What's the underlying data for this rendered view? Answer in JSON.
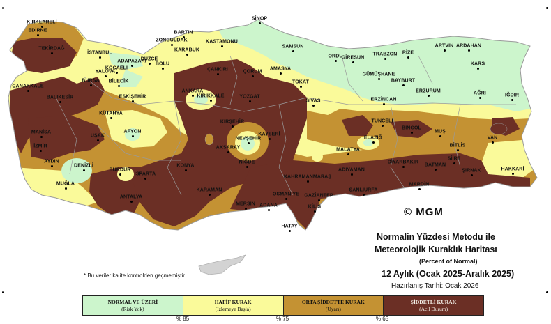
{
  "map": {
    "title_line1": "Normalin Yüzdesi Metodu ile",
    "title_line2": "Meteorolojik Kuraklık Haritası",
    "subtitle": "(Percent of Normal)",
    "period": "12 Aylık (Ocak 2025-Aralık 2025)",
    "prepared": "Hazırlanış Tarihi: Ocak 2026",
    "footnote": "* Bu veriler kalite kontrolden geçmemiştir.",
    "logo_text": "© MGM",
    "colors": {
      "normal": "#ccf5cc",
      "hafif": "#fafa9a",
      "orta": "#c49233",
      "siddetli": "#6b2f25",
      "border": "#9a9a9a"
    }
  },
  "legend": {
    "items": [
      {
        "label": "NORMAL VE ÜZERİ",
        "sub": "(Risk Yok)",
        "color": "#ccf5cc"
      },
      {
        "label": "HAFİF KURAK",
        "sub": "(İzlemeye Başla)",
        "color": "#fafa9a"
      },
      {
        "label": "ORTA ŞİDDETTE KURAK",
        "sub": "(Uyarı)",
        "color": "#c49233"
      },
      {
        "label": "ŞİDDETLİ KURAK",
        "sub": "(Acil Durum)",
        "color": "#6b2f25"
      }
    ],
    "thresholds": [
      "% 85",
      "% 75",
      "% 65"
    ]
  },
  "cities": [
    {
      "name": "SİNOP"
    },
    {
      "name": "KIRKLARELİ"
    },
    {
      "name": "EDİRNE"
    },
    {
      "name": "BARTIN"
    },
    {
      "name": "ZONGULDAK"
    },
    {
      "name": "KARABÜK"
    },
    {
      "name": "KASTAMONU"
    },
    {
      "name": "SAMSUN"
    },
    {
      "name": "ORDU"
    },
    {
      "name": "GİRESUN"
    },
    {
      "name": "TRABZON"
    },
    {
      "name": "RİZE"
    },
    {
      "name": "ARTVİN"
    },
    {
      "name": "ARDAHAN"
    },
    {
      "name": "TEKİRDAĞ"
    },
    {
      "name": "İSTANBUL"
    },
    {
      "name": "KOCAELİ"
    },
    {
      "name": "ADAPAZARI"
    },
    {
      "name": "DÜZCE"
    },
    {
      "name": "BOLU"
    },
    {
      "name": "ÇANKIRI"
    },
    {
      "name": "ÇORUM"
    },
    {
      "name": "AMASYA"
    },
    {
      "name": "GÜMÜŞHANE"
    },
    {
      "name": "BAYBURT"
    },
    {
      "name": "KARS"
    },
    {
      "name": "YALOVA"
    },
    {
      "name": "BURSA"
    },
    {
      "name": "BİLECİK"
    },
    {
      "name": "ÇANAKKALE"
    },
    {
      "name": "BALIKESİR"
    },
    {
      "name": "ESKİŞEHİR"
    },
    {
      "name": "ANKARA"
    },
    {
      "name": "KIRIKKALE"
    },
    {
      "name": "TOKAT"
    },
    {
      "name": "ERZURUM"
    },
    {
      "name": "AĞRI"
    },
    {
      "name": "IĞDIR"
    },
    {
      "name": "ERZİNCAN"
    },
    {
      "name": "SİVAS"
    },
    {
      "name": "YOZGAT"
    },
    {
      "name": "KÜTAHYA"
    },
    {
      "name": "TUNCELİ"
    },
    {
      "name": "BİNGÖL"
    },
    {
      "name": "MUŞ"
    },
    {
      "name": "KIRŞEHİR"
    },
    {
      "name": "AFYON"
    },
    {
      "name": "MANİSA"
    },
    {
      "name": "UŞAK"
    },
    {
      "name": "NEVŞEHİR"
    },
    {
      "name": "KAYSERİ"
    },
    {
      "name": "ELAZIĞ"
    },
    {
      "name": "BİTLİS"
    },
    {
      "name": "VAN"
    },
    {
      "name": "İZMİR"
    },
    {
      "name": "AKSARAY"
    },
    {
      "name": "MALATYA"
    },
    {
      "name": "NİĞDE"
    },
    {
      "name": "AYDIN"
    },
    {
      "name": "DENİZLİ"
    },
    {
      "name": "KONYA"
    },
    {
      "name": "DİYARBAKIR"
    },
    {
      "name": "BATMAN"
    },
    {
      "name": "SİİRT"
    },
    {
      "name": "ŞIRNAK"
    },
    {
      "name": "HAKKARİ"
    },
    {
      "name": "BURDUR"
    },
    {
      "name": "ISPARTA"
    },
    {
      "name": "ADIYAMAN"
    },
    {
      "name": "KAHRAMANMARAŞ"
    },
    {
      "name": "MUĞLA"
    },
    {
      "name": "KARAMAN"
    },
    {
      "name": "ŞANLIURFA"
    },
    {
      "name": "MARDİN"
    },
    {
      "name": "ANTALYA"
    },
    {
      "name": "OSMANİYE"
    },
    {
      "name": "GAZİANTEP"
    },
    {
      "name": "MERSİN"
    },
    {
      "name": "ADANA"
    },
    {
      "name": "KİLİS"
    },
    {
      "name": "HATAY"
    }
  ]
}
